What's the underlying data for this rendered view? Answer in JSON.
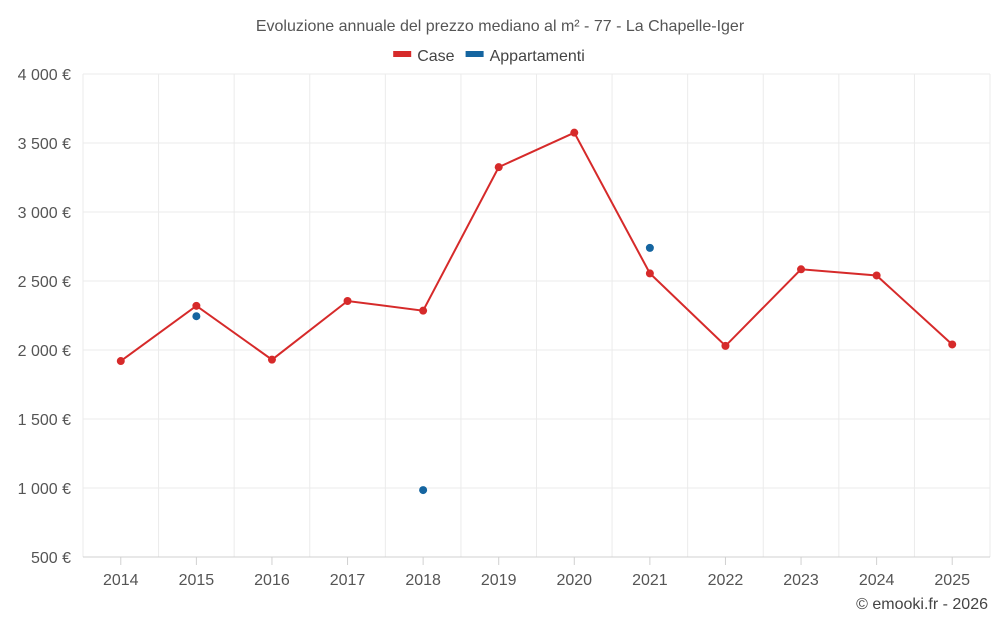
{
  "chart_data": {
    "type": "line",
    "title": "Evoluzione annuale del prezzo mediano al m² - 77 - La Chapelle-Iger",
    "xlabel": "",
    "ylabel": "",
    "categories": [
      "2014",
      "2015",
      "2016",
      "2017",
      "2018",
      "2019",
      "2020",
      "2021",
      "2022",
      "2023",
      "2024",
      "2025"
    ],
    "ylim": [
      500,
      4000
    ],
    "y_ticks": [
      500,
      1000,
      1500,
      2000,
      2500,
      3000,
      3500,
      4000
    ],
    "y_tick_labels": [
      "500 €",
      "1 000 €",
      "1 500 €",
      "2 000 €",
      "2 500 €",
      "3 000 €",
      "3 500 €",
      "4 000 €"
    ],
    "grid": true,
    "legend_position": "top-center",
    "series": [
      {
        "name": "Case",
        "color": "#d62a2a",
        "style": "line-markers",
        "values": [
          1920,
          2320,
          1930,
          2355,
          2285,
          3325,
          3575,
          2555,
          2030,
          2585,
          2540,
          2040
        ]
      },
      {
        "name": "Appartamenti",
        "color": "#1565a0",
        "style": "markers",
        "values": [
          null,
          2245,
          null,
          null,
          985,
          null,
          null,
          2740,
          null,
          null,
          null,
          null
        ]
      }
    ]
  },
  "credit": "© emooki.fr - 2026"
}
